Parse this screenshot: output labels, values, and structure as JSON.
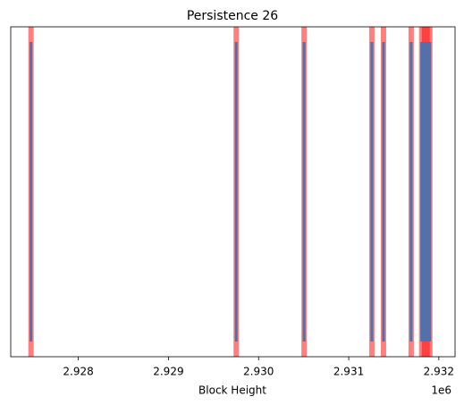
{
  "chart_data": {
    "type": "event",
    "title": "Persistence 26",
    "x_label": "Block Height",
    "x_offset_label": "1e6",
    "x": [
      2927475,
      2929752,
      2930505,
      2931257,
      2931386,
      2931693,
      2931810,
      2931840,
      2931870,
      2931900
    ],
    "color": "#4c72b0",
    "span_color": "#ff0000",
    "xlim": [
      2927250,
      2932180
    ],
    "xticks": [
      {
        "value": 2928000,
        "label": "2.928"
      },
      {
        "value": 2929000,
        "label": "2.929"
      },
      {
        "value": 2930000,
        "label": "2.930"
      },
      {
        "value": 2931000,
        "label": "2.931"
      },
      {
        "value": 2932000,
        "label": "2.932"
      }
    ]
  }
}
